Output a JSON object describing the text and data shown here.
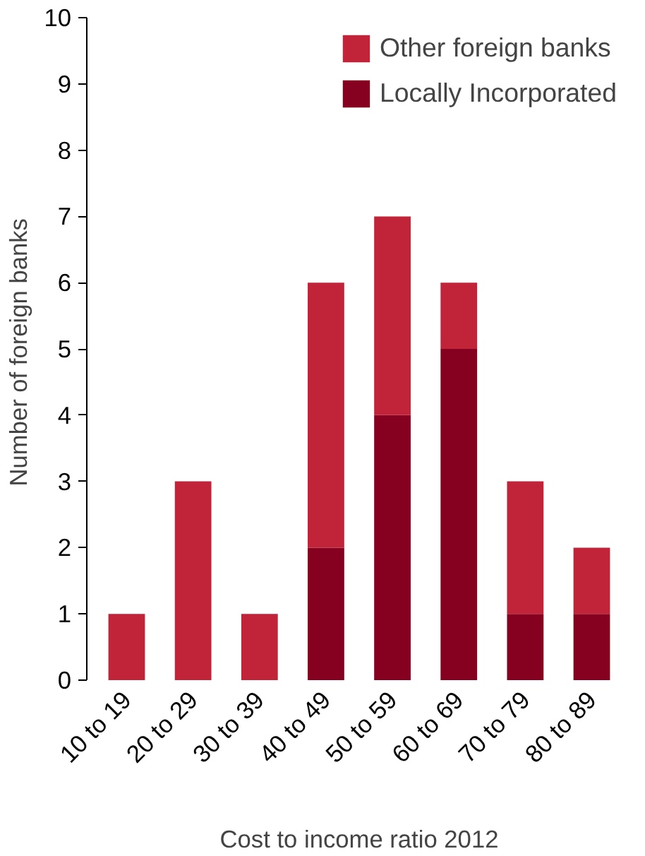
{
  "chart_data": {
    "type": "bar",
    "stacked": true,
    "categories": [
      "10 to 19",
      "20 to 29",
      "30 to 39",
      "40 to 49",
      "50 to 59",
      "60 to 69",
      "70 to 79",
      "80 to 89"
    ],
    "series": [
      {
        "name": "Locally Incorporated",
        "color": "#86001f",
        "values": [
          0,
          0,
          0,
          2,
          4,
          5,
          1,
          1
        ]
      },
      {
        "name": "Other foreign banks",
        "color": "#c12338",
        "values": [
          1,
          3,
          1,
          4,
          3,
          1,
          2,
          1
        ]
      }
    ],
    "xlabel": "Cost to income ratio 2012",
    "ylabel": "Number of  foreign banks",
    "ylim": [
      0,
      10
    ],
    "yticks": [
      0,
      1,
      2,
      3,
      4,
      5,
      6,
      7,
      8,
      9,
      10
    ],
    "grid": false,
    "legend": "top right"
  }
}
